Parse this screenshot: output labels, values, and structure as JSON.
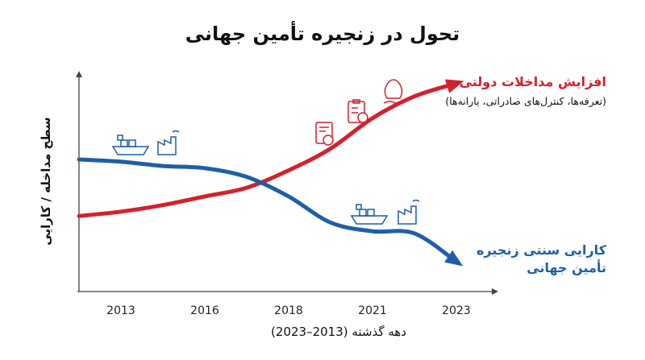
{
  "chart_data": {
    "type": "line",
    "title": "تحول در زنجیره تأمین جهانی",
    "x_label": "دهه گذشته (2013–2023)",
    "y_label": "سطح مداخله / کارایی",
    "categories": [
      null,
      "2013",
      null,
      "2016",
      null,
      "2018",
      null,
      "2021",
      null,
      "2023"
    ],
    "ylim": [
      0,
      100
    ],
    "series": [
      {
        "name": "افزایش مداخلات دولتی",
        "color": "#d3212d",
        "annotation": "(تعرفه‌ها، کنترل‌های صادراتی، یارانه‌ها)",
        "values": [
          34,
          36,
          39,
          43,
          47,
          55,
          65,
          79,
          89,
          95
        ]
      },
      {
        "name": "کارایی سنتی زنجیره تأمین جهانی",
        "color": "#1f5fa6",
        "values": [
          60,
          59,
          57,
          56,
          52,
          43,
          31,
          27,
          26,
          13
        ]
      }
    ]
  }
}
